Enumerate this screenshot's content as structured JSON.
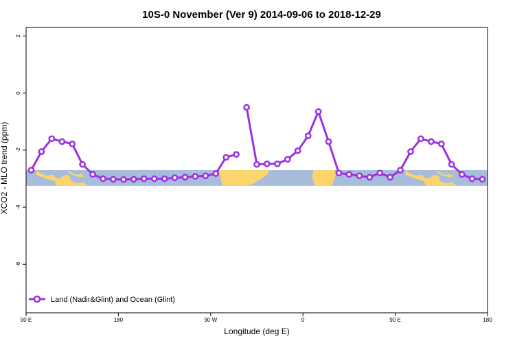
{
  "chart_data": {
    "type": "line",
    "title": "10S-0 November (Ver 9)   2014-09-06 to 2018-12-29",
    "xlabel": "Longitude (deg E)",
    "ylabel": "XCO2 - MLO trend (ppm)",
    "xlim": [
      90,
      540
    ],
    "ylim": [
      -7.7,
      2.3
    ],
    "x_tick_values": [
      90,
      180,
      270,
      360,
      450,
      540
    ],
    "x_tick_labels": [
      "90 E",
      "180",
      "90 W",
      "0",
      "90 E",
      "180"
    ],
    "y_tick_values": [
      2,
      0,
      -2,
      -4,
      -6
    ],
    "y_tick_labels": [
      "2",
      "0",
      "-2",
      "-4",
      "-6"
    ],
    "grid": false,
    "legend_position": "bottom-left",
    "colors": {
      "series": "#9b30e0",
      "ocean": "#a8bcdc",
      "land": "#fcd46c"
    },
    "band": {
      "y_top": -2.7,
      "y_bottom": -3.25
    },
    "series": [
      {
        "name": "Land (Nadir&Glint) and Ocean (Glint)",
        "segments": [
          {
            "x": [
              95,
              105,
              115,
              125,
              135,
              145,
              155,
              165,
              175,
              185,
              195,
              205,
              215,
              225,
              235,
              245,
              255,
              265,
              275,
              285,
              295
            ],
            "y": [
              -2.7,
              -2.05,
              -1.6,
              -1.7,
              -1.78,
              -2.5,
              -2.85,
              -3.0,
              -3.02,
              -3.03,
              -3.02,
              -3.0,
              -3.0,
              -3.0,
              -2.97,
              -2.95,
              -2.92,
              -2.9,
              -2.82,
              -2.25,
              -2.15
            ]
          },
          {
            "x": [
              305,
              315,
              325,
              335,
              345,
              355,
              365,
              375,
              385,
              395,
              405,
              415,
              425,
              435,
              445,
              455,
              465,
              475,
              485,
              495,
              505,
              515,
              525,
              535
            ],
            "y": [
              -0.5,
              -2.5,
              -2.48,
              -2.48,
              -2.32,
              -2.02,
              -1.5,
              -0.65,
              -1.7,
              -2.8,
              -2.85,
              -2.9,
              -2.95,
              -2.8,
              -2.95,
              -2.7,
              -2.05,
              -1.6,
              -1.7,
              -1.78,
              -2.5,
              -2.85,
              -3.0,
              -3.02
            ]
          }
        ]
      }
    ]
  }
}
